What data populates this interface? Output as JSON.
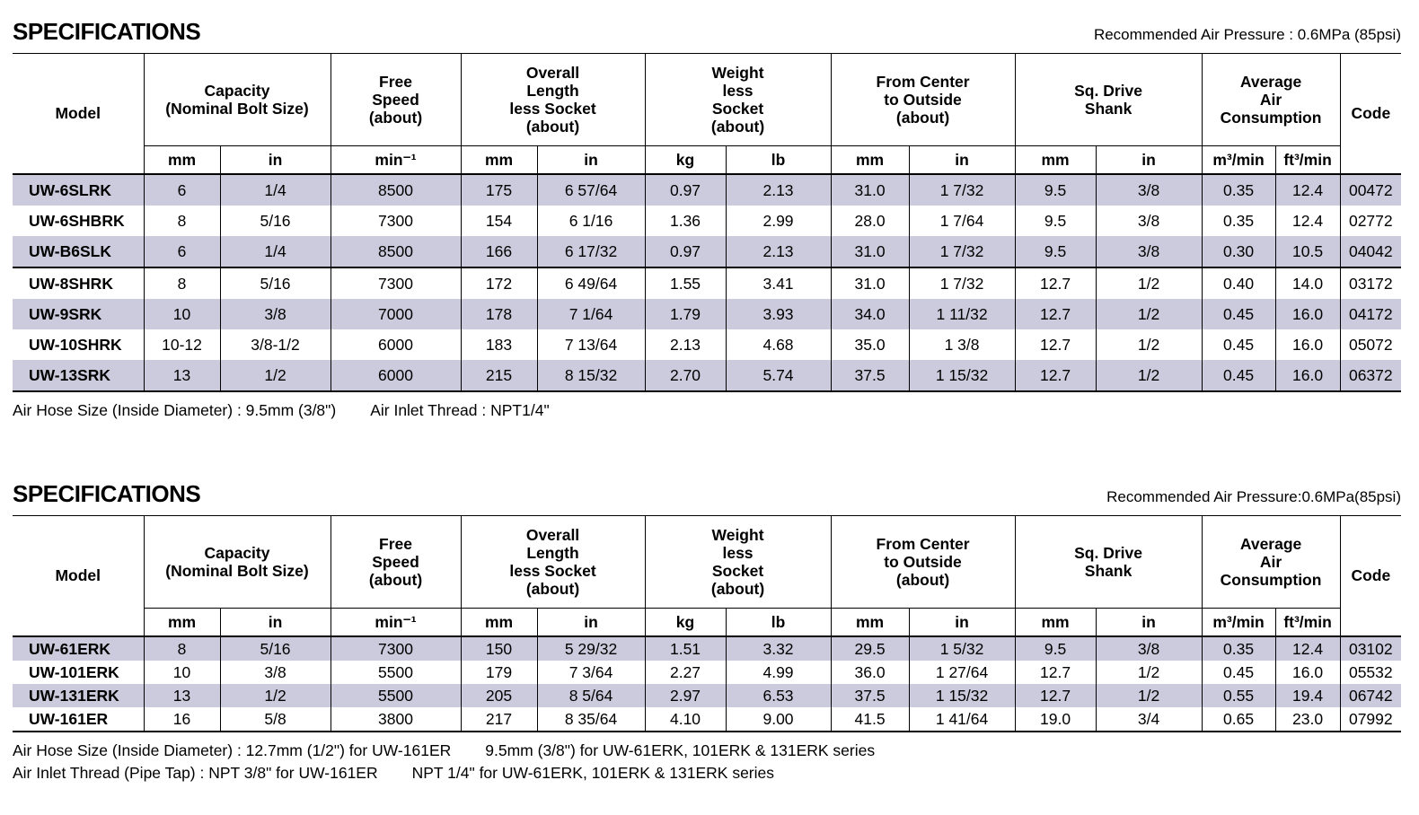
{
  "colors": {
    "row_shade": "#cbcbdd",
    "border": "#000000",
    "text": "#000000",
    "background": "#ffffff"
  },
  "sections": [
    {
      "title": "SPECIFICATIONS",
      "air_pressure_note": "Recommended Air Pressure : 0.6MPa (85psi)",
      "header": {
        "groups": [
          {
            "id": "model",
            "lines": [
              "Model"
            ]
          },
          {
            "id": "capacity",
            "lines": [
              "Capacity",
              "(Nominal Bolt Size)"
            ],
            "units": [
              "mm",
              "in"
            ]
          },
          {
            "id": "free-speed",
            "lines": [
              "Free",
              "Speed",
              "(about)"
            ],
            "units": [
              "min⁻¹"
            ]
          },
          {
            "id": "overall-length",
            "lines": [
              "Overall",
              "Length",
              "less Socket",
              "(about)"
            ],
            "units": [
              "mm",
              "in"
            ]
          },
          {
            "id": "weight",
            "lines": [
              "Weight",
              "less",
              "Socket",
              "(about)"
            ],
            "units": [
              "kg",
              "lb"
            ]
          },
          {
            "id": "center-to-outside",
            "lines": [
              "From Center",
              "to Outside",
              "(about)"
            ],
            "units": [
              "mm",
              "in"
            ]
          },
          {
            "id": "sq-drive-shank",
            "lines": [
              "Sq. Drive",
              "Shank"
            ],
            "units": [
              "mm",
              "in"
            ]
          },
          {
            "id": "air-consumption",
            "lines": [
              "Average",
              "Air",
              "Consumption"
            ],
            "units": [
              "m³/min",
              "ft³/min"
            ]
          },
          {
            "id": "code",
            "lines": [
              "Code"
            ]
          }
        ]
      },
      "rows": [
        [
          "UW-6SLRK",
          "6",
          "1/4",
          "8500",
          "175",
          "6 57/64",
          "0.97",
          "2.13",
          "31.0",
          "1 7/32",
          "9.5",
          "3/8",
          "0.35",
          "12.4",
          "00472"
        ],
        [
          "UW-6SHBRK",
          "8",
          "5/16",
          "7300",
          "154",
          "6 1/16",
          "1.36",
          "2.99",
          "28.0",
          "1 7/64",
          "9.5",
          "3/8",
          "0.35",
          "12.4",
          "02772"
        ],
        [
          "UW-B6SLK",
          "6",
          "1/4",
          "8500",
          "166",
          "6 17/32",
          "0.97",
          "2.13",
          "31.0",
          "1 7/32",
          "9.5",
          "3/8",
          "0.30",
          "10.5",
          "04042"
        ],
        [
          "UW-8SHRK",
          "8",
          "5/16",
          "7300",
          "172",
          "6 49/64",
          "1.55",
          "3.41",
          "31.0",
          "1 7/32",
          "12.7",
          "1/2",
          "0.40",
          "14.0",
          "03172"
        ],
        [
          "UW-9SRK",
          "10",
          "3/8",
          "7000",
          "178",
          "7 1/64",
          "1.79",
          "3.93",
          "34.0",
          "1 11/32",
          "12.7",
          "1/2",
          "0.45",
          "16.0",
          "04172"
        ],
        [
          "UW-10SHRK",
          "10-12",
          "3/8-1/2",
          "6000",
          "183",
          "7 13/64",
          "2.13",
          "4.68",
          "35.0",
          "1 3/8",
          "12.7",
          "1/2",
          "0.45",
          "16.0",
          "05072"
        ],
        [
          "UW-13SRK",
          "13",
          "1/2",
          "6000",
          "215",
          "8 15/32",
          "2.70",
          "5.74",
          "37.5",
          "1 15/32",
          "12.7",
          "1/2",
          "0.45",
          "16.0",
          "06372"
        ]
      ],
      "separator_before_row": 3,
      "footnotes": [
        [
          "Air Hose Size (Inside Diameter) : 9.5mm (3/8\")",
          "Air Inlet Thread : NPT1/4\""
        ]
      ]
    },
    {
      "title": "SPECIFICATIONS",
      "air_pressure_note": "Recommended Air Pressure:0.6MPa(85psi)",
      "header": {
        "groups": [
          {
            "id": "model",
            "lines": [
              "Model"
            ]
          },
          {
            "id": "capacity",
            "lines": [
              "Capacity",
              "(Nominal Bolt Size)"
            ],
            "units": [
              "mm",
              "in"
            ]
          },
          {
            "id": "free-speed",
            "lines": [
              "Free",
              "Speed",
              "(about)"
            ],
            "units": [
              "min⁻¹"
            ]
          },
          {
            "id": "overall-length",
            "lines": [
              "Overall",
              "Length",
              "less Socket",
              "(about)"
            ],
            "units": [
              "mm",
              "in"
            ]
          },
          {
            "id": "weight",
            "lines": [
              "Weight",
              "less",
              "Socket",
              "(about)"
            ],
            "units": [
              "kg",
              "lb"
            ]
          },
          {
            "id": "center-to-outside",
            "lines": [
              "From Center",
              "to Outside",
              "(about)"
            ],
            "units": [
              "mm",
              "in"
            ]
          },
          {
            "id": "sq-drive-shank",
            "lines": [
              "Sq. Drive",
              "Shank"
            ],
            "units": [
              "mm",
              "in"
            ]
          },
          {
            "id": "air-consumption",
            "lines": [
              "Average",
              "Air",
              "Consumption"
            ],
            "units": [
              "m³/min",
              "ft³/min"
            ]
          },
          {
            "id": "code",
            "lines": [
              "Code"
            ]
          }
        ]
      },
      "rows": [
        [
          "UW-61ERK",
          "8",
          "5/16",
          "7300",
          "150",
          "5 29/32",
          "1.51",
          "3.32",
          "29.5",
          "1 5/32",
          "9.5",
          "3/8",
          "0.35",
          "12.4",
          "03102"
        ],
        [
          "UW-101ERK",
          "10",
          "3/8",
          "5500",
          "179",
          "7 3/64",
          "2.27",
          "4.99",
          "36.0",
          "1 27/64",
          "12.7",
          "1/2",
          "0.45",
          "16.0",
          "05532"
        ],
        [
          "UW-131ERK",
          "13",
          "1/2",
          "5500",
          "205",
          "8 5/64",
          "2.97",
          "6.53",
          "37.5",
          "1 15/32",
          "12.7",
          "1/2",
          "0.55",
          "19.4",
          "06742"
        ],
        [
          "UW-161ER",
          "16",
          "5/8",
          "3800",
          "217",
          "8 35/64",
          "4.10",
          "9.00",
          "41.5",
          "1 41/64",
          "19.0",
          "3/4",
          "0.65",
          "23.0",
          "07992"
        ]
      ],
      "separator_before_row": null,
      "footnotes": [
        [
          "Air Hose Size (Inside Diameter) : 12.7mm (1/2\") for UW-161ER",
          "9.5mm (3/8\") for UW-61ERK, 101ERK & 131ERK series"
        ],
        [
          "Air Inlet Thread (Pipe Tap) : NPT 3/8\" for UW-161ER",
          "NPT 1/4\" for UW-61ERK, 101ERK & 131ERK series"
        ]
      ]
    }
  ]
}
